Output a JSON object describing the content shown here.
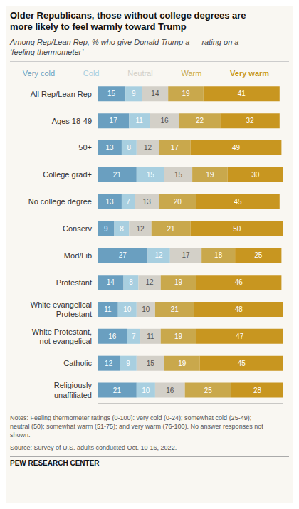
{
  "chart_data": {
    "type": "bar",
    "orientation": "horizontal",
    "stacked": true,
    "data_labels": true,
    "tick_labels": "y",
    "legend": "top",
    "title": "Older Republicans, those without college degrees are\nmore likely to feel warmly toward Trump",
    "subtitle": "Among Rep/Lean Rep, % who give Donald Trump a — rating on a\n‘feeling thermometer’",
    "annotations": [
      "Notes: Feeling thermometer ratings (0-100): very cold (0-24); somewhat cold (25-49);\nneutral (50); somewhat warm (51-75); and very warm (76-100). No answer responses not\nshown.",
      "Source: Survey of U.S. adults conducted Oct. 10-16, 2022.",
      "PEW RESEARCH CENTER"
    ],
    "categories": [
      "All Rep/Lean Rep",
      "Ages 18-49",
      "50+",
      "College grad+",
      "No college degree",
      "Conserv",
      "Mod/Lib",
      "Protestant",
      "White evangelical\nProtestant",
      "White Protestant,\nnot evangelical",
      "Catholic",
      "Religiously\nunaffiliated"
    ],
    "series": [
      {
        "name": "Very cold",
        "color": "#6a9fc0",
        "values": [
          15,
          17,
          13,
          21,
          13,
          9,
          27,
          14,
          11,
          16,
          12,
          21
        ]
      },
      {
        "name": "Cold",
        "color": "#a8cfe0",
        "values": [
          9,
          11,
          8,
          15,
          7,
          8,
          12,
          8,
          10,
          7,
          9,
          10
        ]
      },
      {
        "name": "Neutral",
        "color": "#d3d0c8",
        "values": [
          14,
          16,
          12,
          15,
          13,
          12,
          17,
          12,
          10,
          11,
          15,
          16
        ]
      },
      {
        "name": "Warm",
        "color": "#c9a84c",
        "values": [
          19,
          22,
          17,
          19,
          20,
          21,
          18,
          19,
          21,
          19,
          19,
          25
        ]
      },
      {
        "name": "Very warm",
        "color": "#c89620",
        "values": [
          41,
          32,
          49,
          30,
          45,
          50,
          25,
          46,
          48,
          47,
          45,
          28
        ]
      }
    ],
    "xlim": [
      0,
      100
    ]
  }
}
